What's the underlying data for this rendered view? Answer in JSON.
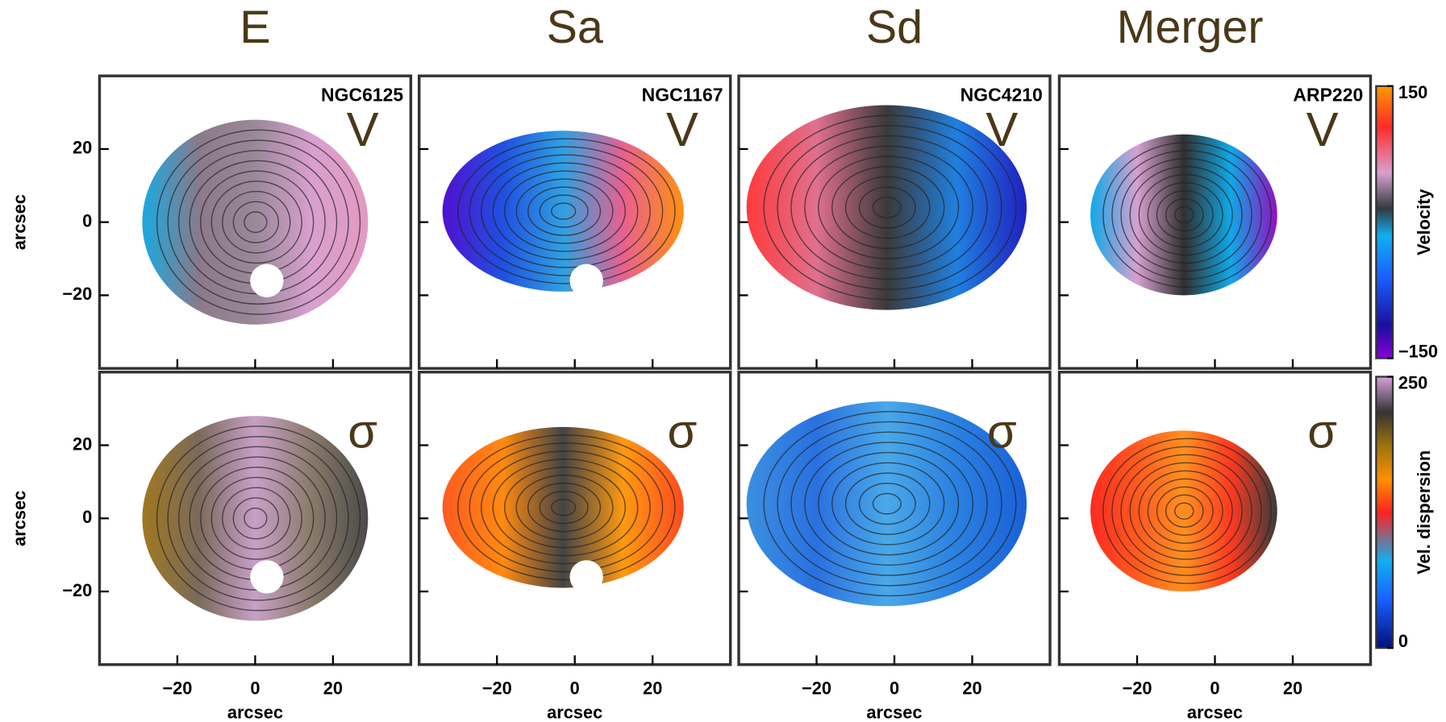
{
  "columns": [
    "E",
    "Sa",
    "Sd",
    "Merger"
  ],
  "galaxies": [
    "NGC6125",
    "NGC1167",
    "NGC4210",
    "ARP220"
  ],
  "row_labels": [
    "V",
    "σ"
  ],
  "axes": {
    "xlabel": "arcsec",
    "ylabel": "arcsec",
    "xlim": [
      -40,
      40
    ],
    "ylim": [
      -40,
      40
    ],
    "ticks": [
      {
        "value": -20,
        "label": "−20"
      },
      0,
      20
    ]
  },
  "colorbars": [
    {
      "label": "Velocity",
      "lim": [
        -150,
        150
      ],
      "ticks": [
        {
          "value": -150,
          "label": "−150"
        },
        150
      ]
    },
    {
      "label": "Vel. dispersion",
      "lim": [
        0,
        250
      ],
      "ticks": [
        0,
        250
      ]
    }
  ]
}
